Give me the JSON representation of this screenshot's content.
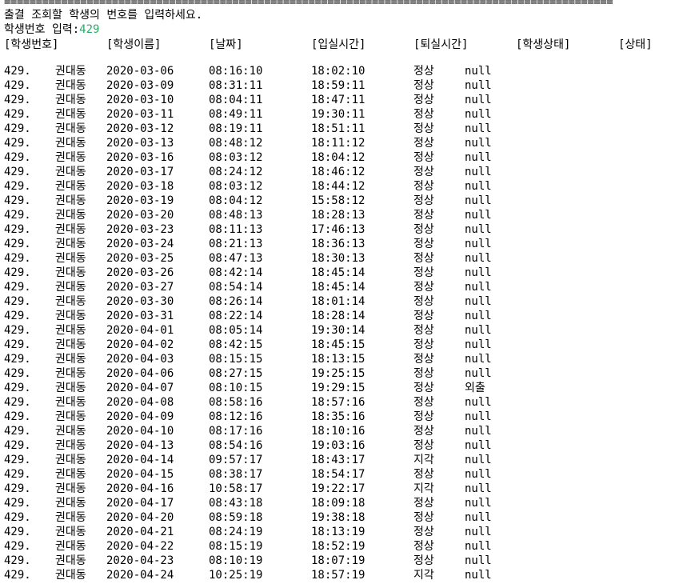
{
  "console": {
    "separator": "================================================================================================",
    "prompt": "출결 조회할 학생의 번호를 입력하세요.",
    "input_label": "학생번호 입력:",
    "input_value": "429",
    "input_color": "#2fa86b",
    "headers": [
      "[학생번호]",
      "[학생이름]",
      "[날짜]",
      "[입실시간]",
      "[퇴실시간]",
      "[학생상태]",
      "[상태]"
    ],
    "rows": [
      {
        "id": "429.",
        "name": "권대동",
        "date": "2020-03-06",
        "in": "08:16:10",
        "out": "18:02:10",
        "student_status": "정상",
        "status": "null"
      },
      {
        "id": "429.",
        "name": "권대동",
        "date": "2020-03-09",
        "in": "08:31:11",
        "out": "18:59:11",
        "student_status": "정상",
        "status": "null"
      },
      {
        "id": "429.",
        "name": "권대동",
        "date": "2020-03-10",
        "in": "08:04:11",
        "out": "18:47:11",
        "student_status": "정상",
        "status": "null"
      },
      {
        "id": "429.",
        "name": "권대동",
        "date": "2020-03-11",
        "in": "08:49:11",
        "out": "19:30:11",
        "student_status": "정상",
        "status": "null"
      },
      {
        "id": "429.",
        "name": "권대동",
        "date": "2020-03-12",
        "in": "08:19:11",
        "out": "18:51:11",
        "student_status": "정상",
        "status": "null"
      },
      {
        "id": "429.",
        "name": "권대동",
        "date": "2020-03-13",
        "in": "08:48:12",
        "out": "18:11:12",
        "student_status": "정상",
        "status": "null"
      },
      {
        "id": "429.",
        "name": "권대동",
        "date": "2020-03-16",
        "in": "08:03:12",
        "out": "18:04:12",
        "student_status": "정상",
        "status": "null"
      },
      {
        "id": "429.",
        "name": "권대동",
        "date": "2020-03-17",
        "in": "08:24:12",
        "out": "18:46:12",
        "student_status": "정상",
        "status": "null"
      },
      {
        "id": "429.",
        "name": "권대동",
        "date": "2020-03-18",
        "in": "08:03:12",
        "out": "18:44:12",
        "student_status": "정상",
        "status": "null"
      },
      {
        "id": "429.",
        "name": "권대동",
        "date": "2020-03-19",
        "in": "08:04:12",
        "out": "15:58:12",
        "student_status": "정상",
        "status": "null"
      },
      {
        "id": "429.",
        "name": "권대동",
        "date": "2020-03-20",
        "in": "08:48:13",
        "out": "18:28:13",
        "student_status": "정상",
        "status": "null"
      },
      {
        "id": "429.",
        "name": "권대동",
        "date": "2020-03-23",
        "in": "08:11:13",
        "out": "17:46:13",
        "student_status": "정상",
        "status": "null"
      },
      {
        "id": "429.",
        "name": "권대동",
        "date": "2020-03-24",
        "in": "08:21:13",
        "out": "18:36:13",
        "student_status": "정상",
        "status": "null"
      },
      {
        "id": "429.",
        "name": "권대동",
        "date": "2020-03-25",
        "in": "08:47:13",
        "out": "18:30:13",
        "student_status": "정상",
        "status": "null"
      },
      {
        "id": "429.",
        "name": "권대동",
        "date": "2020-03-26",
        "in": "08:42:14",
        "out": "18:45:14",
        "student_status": "정상",
        "status": "null"
      },
      {
        "id": "429.",
        "name": "권대동",
        "date": "2020-03-27",
        "in": "08:54:14",
        "out": "18:45:14",
        "student_status": "정상",
        "status": "null"
      },
      {
        "id": "429.",
        "name": "권대동",
        "date": "2020-03-30",
        "in": "08:26:14",
        "out": "18:01:14",
        "student_status": "정상",
        "status": "null"
      },
      {
        "id": "429.",
        "name": "권대동",
        "date": "2020-03-31",
        "in": "08:22:14",
        "out": "18:28:14",
        "student_status": "정상",
        "status": "null"
      },
      {
        "id": "429.",
        "name": "권대동",
        "date": "2020-04-01",
        "in": "08:05:14",
        "out": "19:30:14",
        "student_status": "정상",
        "status": "null"
      },
      {
        "id": "429.",
        "name": "권대동",
        "date": "2020-04-02",
        "in": "08:42:15",
        "out": "18:45:15",
        "student_status": "정상",
        "status": "null"
      },
      {
        "id": "429.",
        "name": "권대동",
        "date": "2020-04-03",
        "in": "08:15:15",
        "out": "18:13:15",
        "student_status": "정상",
        "status": "null"
      },
      {
        "id": "429.",
        "name": "권대동",
        "date": "2020-04-06",
        "in": "08:27:15",
        "out": "19:25:15",
        "student_status": "정상",
        "status": "null"
      },
      {
        "id": "429.",
        "name": "권대동",
        "date": "2020-04-07",
        "in": "08:10:15",
        "out": "19:29:15",
        "student_status": "정상",
        "status": "외출"
      },
      {
        "id": "429.",
        "name": "권대동",
        "date": "2020-04-08",
        "in": "08:58:16",
        "out": "18:57:16",
        "student_status": "정상",
        "status": "null"
      },
      {
        "id": "429.",
        "name": "권대동",
        "date": "2020-04-09",
        "in": "08:12:16",
        "out": "18:35:16",
        "student_status": "정상",
        "status": "null"
      },
      {
        "id": "429.",
        "name": "권대동",
        "date": "2020-04-10",
        "in": "08:17:16",
        "out": "18:10:16",
        "student_status": "정상",
        "status": "null"
      },
      {
        "id": "429.",
        "name": "권대동",
        "date": "2020-04-13",
        "in": "08:54:16",
        "out": "19:03:16",
        "student_status": "정상",
        "status": "null"
      },
      {
        "id": "429.",
        "name": "권대동",
        "date": "2020-04-14",
        "in": "09:57:17",
        "out": "18:43:17",
        "student_status": "지각",
        "status": "null"
      },
      {
        "id": "429.",
        "name": "권대동",
        "date": "2020-04-15",
        "in": "08:38:17",
        "out": "18:54:17",
        "student_status": "정상",
        "status": "null"
      },
      {
        "id": "429.",
        "name": "권대동",
        "date": "2020-04-16",
        "in": "10:58:17",
        "out": "19:22:17",
        "student_status": "지각",
        "status": "null"
      },
      {
        "id": "429.",
        "name": "권대동",
        "date": "2020-04-17",
        "in": "08:43:18",
        "out": "18:09:18",
        "student_status": "정상",
        "status": "null"
      },
      {
        "id": "429.",
        "name": "권대동",
        "date": "2020-04-20",
        "in": "08:59:18",
        "out": "19:38:18",
        "student_status": "정상",
        "status": "null"
      },
      {
        "id": "429.",
        "name": "권대동",
        "date": "2020-04-21",
        "in": "08:24:19",
        "out": "18:13:19",
        "student_status": "정상",
        "status": "null"
      },
      {
        "id": "429.",
        "name": "권대동",
        "date": "2020-04-22",
        "in": "08:15:19",
        "out": "18:52:19",
        "student_status": "정상",
        "status": "null"
      },
      {
        "id": "429.",
        "name": "권대동",
        "date": "2020-04-23",
        "in": "08:10:19",
        "out": "18:07:19",
        "student_status": "정상",
        "status": "null"
      },
      {
        "id": "429.",
        "name": "권대동",
        "date": "2020-04-24",
        "in": "10:25:19",
        "out": "18:57:19",
        "student_status": "지각",
        "status": "null"
      }
    ]
  }
}
